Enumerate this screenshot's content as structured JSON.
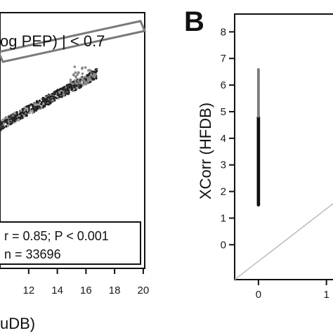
{
  "colors": {
    "axis": "#111111",
    "point_dark": "#222222",
    "point_gray": "#8a8a8a",
    "band": "#7a7a7a",
    "diag": "#bdbdbd"
  },
  "chart_data": [
    {
      "type": "scatter",
      "panel": "",
      "annotation": "og PEP) |  < 0.7",
      "xlabel": "uDB)",
      "x_ticks": [
        "12",
        "14",
        "16",
        "18",
        "20"
      ],
      "xlim": [
        9.8,
        20.3
      ],
      "ylim": [
        0,
        1
      ],
      "stats": {
        "r_p": "r = 0.85; P < 0.001",
        "n": "n = 33696"
      },
      "series": [
        {
          "values_summary": "dense linear band of points",
          "x": [
            9.8,
            11,
            12,
            13,
            14,
            15,
            16,
            17,
            17.8
          ],
          "y": [
            0.53,
            0.57,
            0.61,
            0.645,
            0.68,
            0.715,
            0.75,
            0.79,
            0.81
          ]
        }
      ]
    },
    {
      "type": "scatter",
      "panel": "B",
      "ylabel": "XCorr (HFDB)",
      "y_ticks": [
        "8",
        "7",
        "6",
        "5",
        "4",
        "3",
        "2",
        "1",
        "0"
      ],
      "x_ticks": [
        "0",
        "1"
      ],
      "ylim": [
        -1.1,
        8.3
      ],
      "xlim": [
        -0.35,
        1.2
      ],
      "series": [
        {
          "x": 0,
          "y_range": [
            1.5,
            6.6
          ]
        }
      ]
    }
  ]
}
